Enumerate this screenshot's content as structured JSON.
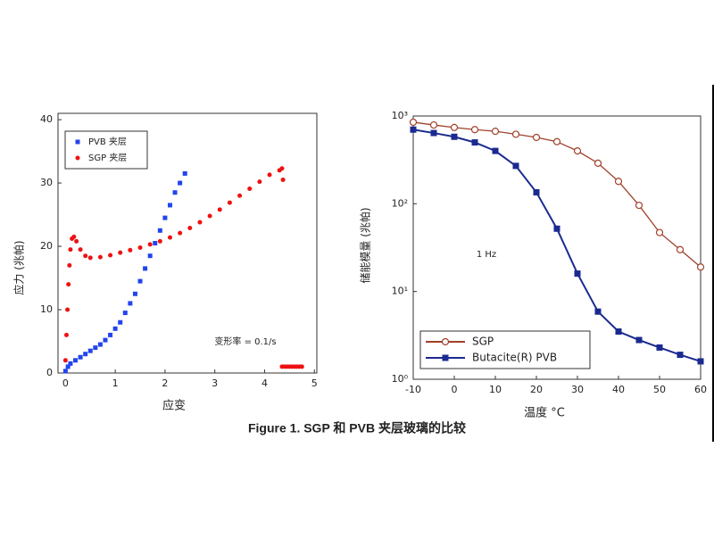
{
  "caption": "Figure 1. SGP 和 PVB 夹层玻璃的比较",
  "chart_data": [
    {
      "type": "scatter",
      "x_label": "应变",
      "y_label": "应力 (兆帕)",
      "annotation": "变形率 = 0.1/s",
      "xlim": [
        -0.15,
        5.05
      ],
      "ylim": [
        0,
        41
      ],
      "xticks": [
        0,
        1,
        2,
        3,
        4,
        5
      ],
      "yticks": [
        0,
        10,
        20,
        30,
        40
      ],
      "log_y": false,
      "legend": "top-left",
      "series": [
        {
          "name": "PVB 夹层",
          "color": "#2244ee",
          "marker": "square",
          "x": [
            0,
            0.05,
            0.1,
            0.2,
            0.3,
            0.4,
            0.5,
            0.6,
            0.7,
            0.8,
            0.9,
            1.0,
            1.1,
            1.2,
            1.3,
            1.4,
            1.5,
            1.6,
            1.7,
            1.8,
            1.9,
            2.0,
            2.1,
            2.2,
            2.3,
            2.4
          ],
          "values": [
            0.3,
            1,
            1.5,
            2,
            2.5,
            3,
            3.5,
            4,
            4.5,
            5.2,
            6,
            7,
            8,
            9.5,
            11,
            12.5,
            14.5,
            16.5,
            18.5,
            20.5,
            22.5,
            24.5,
            26.5,
            28.5,
            30,
            31.5
          ]
        },
        {
          "name": "SGP 夹层",
          "color": "#ee1111",
          "marker": "circle",
          "x": [
            0,
            0.02,
            0.04,
            0.06,
            0.08,
            0.1,
            0.13,
            0.17,
            0.22,
            0.3,
            0.4,
            0.5,
            0.7,
            0.9,
            1.1,
            1.3,
            1.5,
            1.7,
            1.9,
            2.1,
            2.3,
            2.5,
            2.7,
            2.9,
            3.1,
            3.3,
            3.5,
            3.7,
            3.9,
            4.1,
            4.3,
            4.35,
            4.37,
            4.35,
            4.4,
            4.45,
            4.5,
            4.55,
            4.6,
            4.65,
            4.7,
            4.75
          ],
          "values": [
            2,
            6,
            10,
            14,
            17,
            19.5,
            21.2,
            21.5,
            20.8,
            19.5,
            18.5,
            18.2,
            18.3,
            18.6,
            19,
            19.4,
            19.8,
            20.3,
            20.8,
            21.4,
            22.1,
            22.9,
            23.8,
            24.8,
            25.8,
            26.9,
            28,
            29.1,
            30.2,
            31.3,
            32,
            32.3,
            30.5,
            1,
            1,
            1,
            1,
            1,
            1,
            1,
            1,
            1
          ]
        }
      ]
    },
    {
      "type": "line",
      "x_label": "温度 °C",
      "y_label": "储能模量 (兆帕)",
      "annotation": "1 Hz",
      "xlim": [
        -10,
        60
      ],
      "ylim": [
        1,
        1000
      ],
      "xticks": [
        -10,
        0,
        10,
        20,
        30,
        40,
        50,
        60
      ],
      "yticks": [
        {
          "value": 1,
          "label": "10⁰"
        },
        {
          "value": 10,
          "label": "10¹"
        },
        {
          "value": 100,
          "label": "10²"
        },
        {
          "value": 1000,
          "label": "10³"
        }
      ],
      "log_y": true,
      "legend": "bottom-left",
      "series": [
        {
          "name": "SGP",
          "color": "#a0402a",
          "marker": "open-circle",
          "x": [
            -10,
            -5,
            0,
            5,
            10,
            15,
            20,
            25,
            30,
            35,
            40,
            45,
            50,
            55,
            60
          ],
          "values": [
            850,
            790,
            740,
            700,
            670,
            620,
            570,
            510,
            400,
            290,
            180,
            96,
            47,
            30,
            19
          ]
        },
        {
          "name": "Butacite(R) PVB",
          "color": "#1a2a90",
          "marker": "square",
          "x": [
            -10,
            -5,
            0,
            5,
            10,
            15,
            20,
            25,
            30,
            35,
            40,
            45,
            50,
            55,
            60
          ],
          "values": [
            700,
            640,
            580,
            500,
            400,
            270,
            135,
            52,
            16,
            5.9,
            3.5,
            2.8,
            2.3,
            1.9,
            1.6
          ]
        }
      ]
    }
  ]
}
